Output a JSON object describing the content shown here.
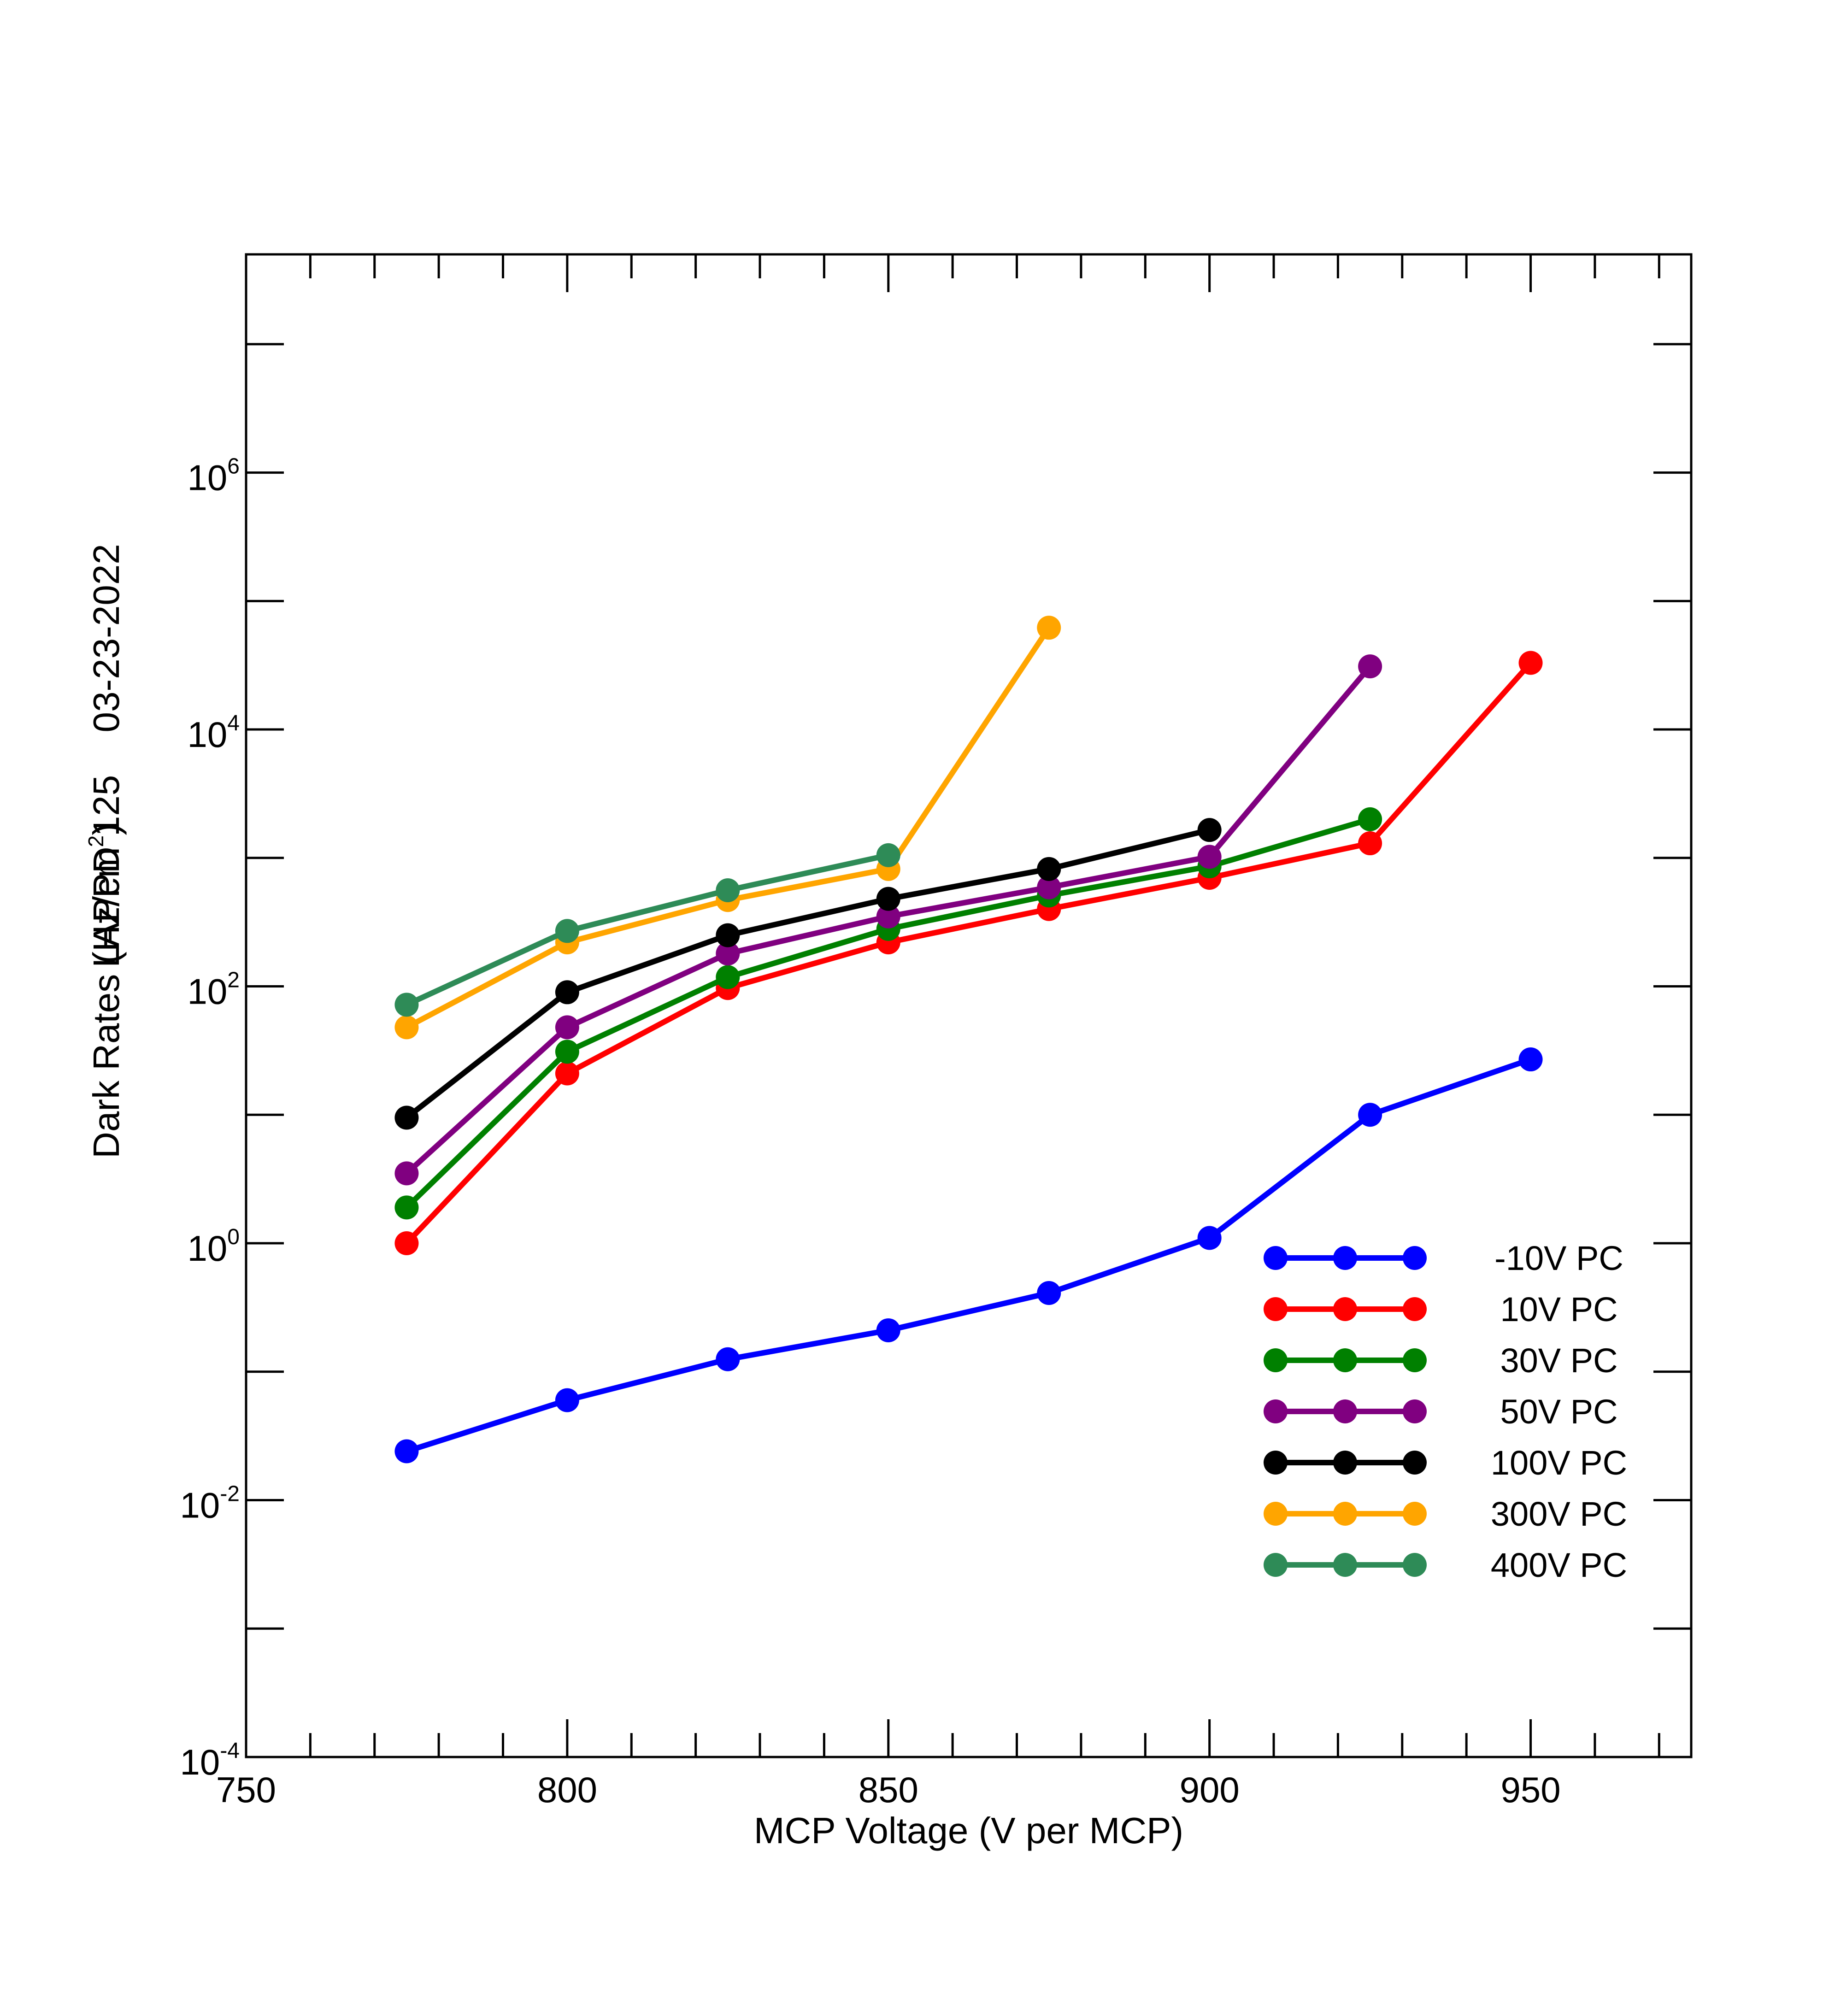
{
  "chart_data": {
    "type": "line",
    "title": "",
    "xlabel": "MCP Voltage (V per MCP)",
    "ylabel": {
      "prefix": "Dark Rates (Hz/cm",
      "superscript": "2",
      "suffix": ")"
    },
    "side_annotation": {
      "device": "LAPPD 125",
      "date": "03-23-2022"
    },
    "xlim": [
      750,
      975
    ],
    "ylim": [
      0.0001,
      50000000
    ],
    "yscale": "log",
    "x_ticks": [
      750,
      800,
      850,
      900,
      950
    ],
    "x_minor_ticks": [
      760,
      770,
      780,
      790,
      810,
      820,
      830,
      840,
      860,
      870,
      880,
      890,
      910,
      920,
      930,
      940,
      960,
      970
    ],
    "y_ticks": [
      {
        "value": 0.0001,
        "base": "10",
        "exp": "-4"
      },
      {
        "value": 0.01,
        "base": "10",
        "exp": "-2"
      },
      {
        "value": 1,
        "base": "10",
        "exp": "0"
      },
      {
        "value": 100,
        "base": "10",
        "exp": "2"
      },
      {
        "value": 10000,
        "base": "10",
        "exp": "4"
      },
      {
        "value": 1000000,
        "base": "10",
        "exp": "6"
      }
    ],
    "y_minor_ticks": [
      0.001,
      0.1,
      10,
      1000,
      100000,
      10000000
    ],
    "legend_position": "bottom-right",
    "series": [
      {
        "name": "-10V PC",
        "color": "#0000FF",
        "x": [
          775,
          800,
          825,
          850,
          875,
          900,
          925,
          950
        ],
        "values": [
          0.024,
          0.06,
          0.125,
          0.21,
          0.41,
          1.1,
          10,
          27
        ]
      },
      {
        "name": "10V PC",
        "color": "#FF0000",
        "x": [
          775,
          800,
          825,
          850,
          875,
          900,
          925,
          950
        ],
        "values": [
          1.0,
          21,
          97,
          220,
          400,
          700,
          1300,
          33000
        ]
      },
      {
        "name": "30V PC",
        "color": "#008000",
        "x": [
          775,
          800,
          825,
          850,
          875,
          900,
          925
        ],
        "values": [
          1.9,
          31,
          118,
          280,
          510,
          860,
          2000
        ]
      },
      {
        "name": "50V PC",
        "color": "#800080",
        "x": [
          775,
          800,
          825,
          850,
          875,
          900,
          925
        ],
        "values": [
          3.5,
          48,
          180,
          350,
          590,
          1020,
          31000
        ]
      },
      {
        "name": "100V PC",
        "color": "#000000",
        "x": [
          775,
          800,
          825,
          850,
          875,
          900
        ],
        "values": [
          9.5,
          90,
          250,
          480,
          820,
          1650
        ]
      },
      {
        "name": "300V PC",
        "color": "#FFA500",
        "x": [
          775,
          800,
          825,
          850,
          875
        ],
        "values": [
          48,
          220,
          470,
          820,
          62000
        ]
      },
      {
        "name": "400V PC",
        "color": "#2E8B57",
        "x": [
          775,
          800,
          825,
          850
        ],
        "values": [
          72,
          270,
          560,
          1050
        ]
      }
    ]
  }
}
